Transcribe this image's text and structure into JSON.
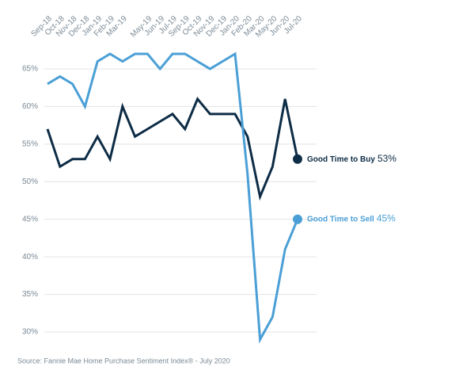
{
  "chart_data": {
    "type": "line",
    "categories": [
      "Sep-18",
      "Oct-18",
      "Nov-18",
      "Dec-18",
      "Jan-19",
      "Feb-19",
      "Mar-19",
      null,
      "May-19",
      "Jun-19",
      "Jul-19",
      "Sep-19",
      "Oct-19",
      "Nov-19",
      "Dec-19",
      "Jan-20",
      "Feb-20",
      "Mar-20",
      "May-20",
      "Jun-20",
      "Jul-20"
    ],
    "series": [
      {
        "name": "Good Time to Buy",
        "color": "#0d2c45",
        "values": [
          57,
          52,
          53,
          53,
          56,
          53,
          60,
          56,
          57,
          58,
          59,
          57,
          61,
          59,
          59,
          59,
          56,
          48,
          52,
          61,
          53
        ],
        "value_labels": [
          "53%"
        ]
      },
      {
        "name": "Good Time to Sell",
        "color": "#4a9fd6",
        "values": [
          63,
          64,
          63,
          60,
          66,
          67,
          66,
          67,
          67,
          65,
          67,
          67,
          66,
          65,
          66,
          67,
          51,
          29,
          32,
          41,
          45
        ],
        "value_labels": [
          "45%"
        ]
      }
    ],
    "ylim": [
      29,
      68
    ],
    "yticks": [
      {
        "value": 30,
        "label": "30%"
      },
      {
        "value": 35,
        "label": "35%"
      },
      {
        "value": 40,
        "label": "40%"
      },
      {
        "value": 45,
        "label": "45%"
      },
      {
        "value": 50,
        "label": "50%"
      },
      {
        "value": 55,
        "label": "55%"
      },
      {
        "value": 60,
        "label": "60%"
      },
      {
        "value": 65,
        "label": "65%"
      }
    ],
    "grid": true,
    "source": "Source: Fannie Mae Home Purchase Sentiment Index® - July 2020"
  }
}
